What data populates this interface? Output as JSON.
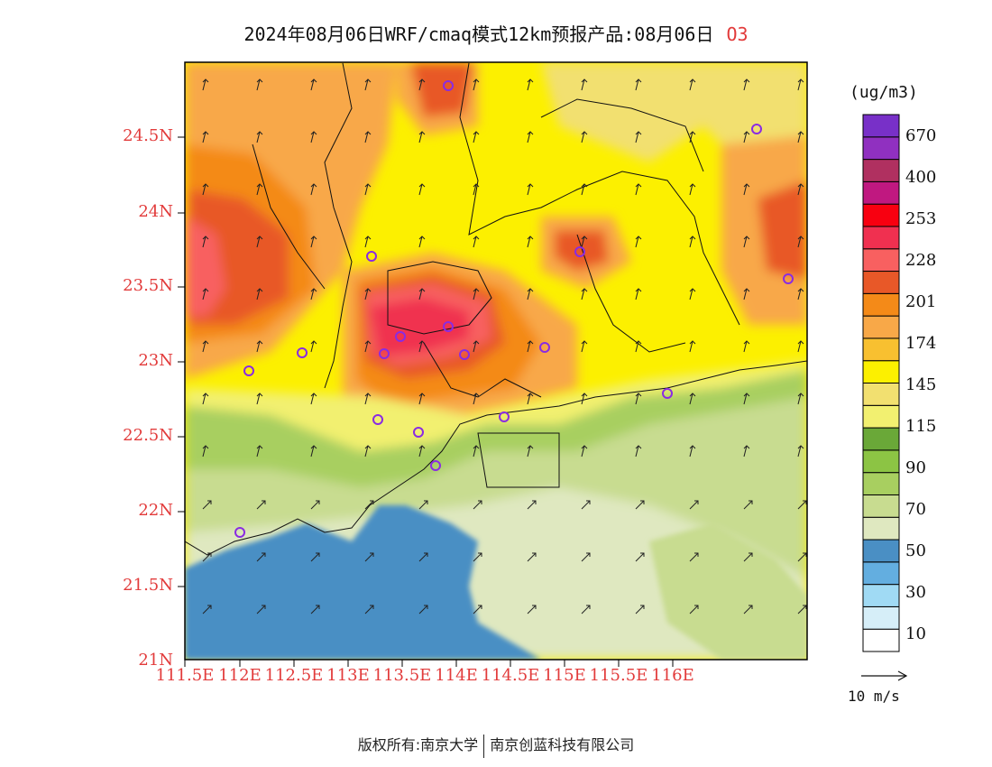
{
  "title": {
    "text": "2024年08月06日WRF/cmaq模式12km预报产品:08月06日",
    "species": "O3"
  },
  "map": {
    "lon_labels": [
      "111.5E",
      "112E",
      "112.5E",
      "113E",
      "113.5E",
      "114E",
      "114.5E",
      "115E",
      "115.5E",
      "116E"
    ],
    "lat_labels": [
      "24.5N",
      "24N",
      "23.5N",
      "23N",
      "22.5N",
      "22N",
      "21.5N",
      "21N"
    ]
  },
  "colorbar": {
    "unit": "(ug/m3)",
    "labels": [
      "670",
      "400",
      "253",
      "228",
      "201",
      "174",
      "145",
      "115",
      "90",
      "70",
      "50",
      "30",
      "10"
    ],
    "colors": [
      "#ffffff",
      "#d6eef8",
      "#a0daf4",
      "#63aee0",
      "#4a8fc4",
      "#dfe8c0",
      "#c8dc90",
      "#a8cf60",
      "#8cc444",
      "#6aa838",
      "#f2f070",
      "#f2e070",
      "#fcf000",
      "#f8c030",
      "#f8a848",
      "#f48a18",
      "#e85828",
      "#f86060",
      "#f03050",
      "#f80010",
      "#c01880",
      "#b03060",
      "#9030c0",
      "#7830c8"
    ]
  },
  "wind": {
    "reference_label": "10 m/s"
  },
  "footer": {
    "left": "版权所有:南京大学",
    "right": "南京创蓝科技有限公司"
  },
  "colors": {
    "axis_label": "#e23b3b",
    "sea": "#4a8fc4",
    "station_ring": "#8a2be2"
  }
}
